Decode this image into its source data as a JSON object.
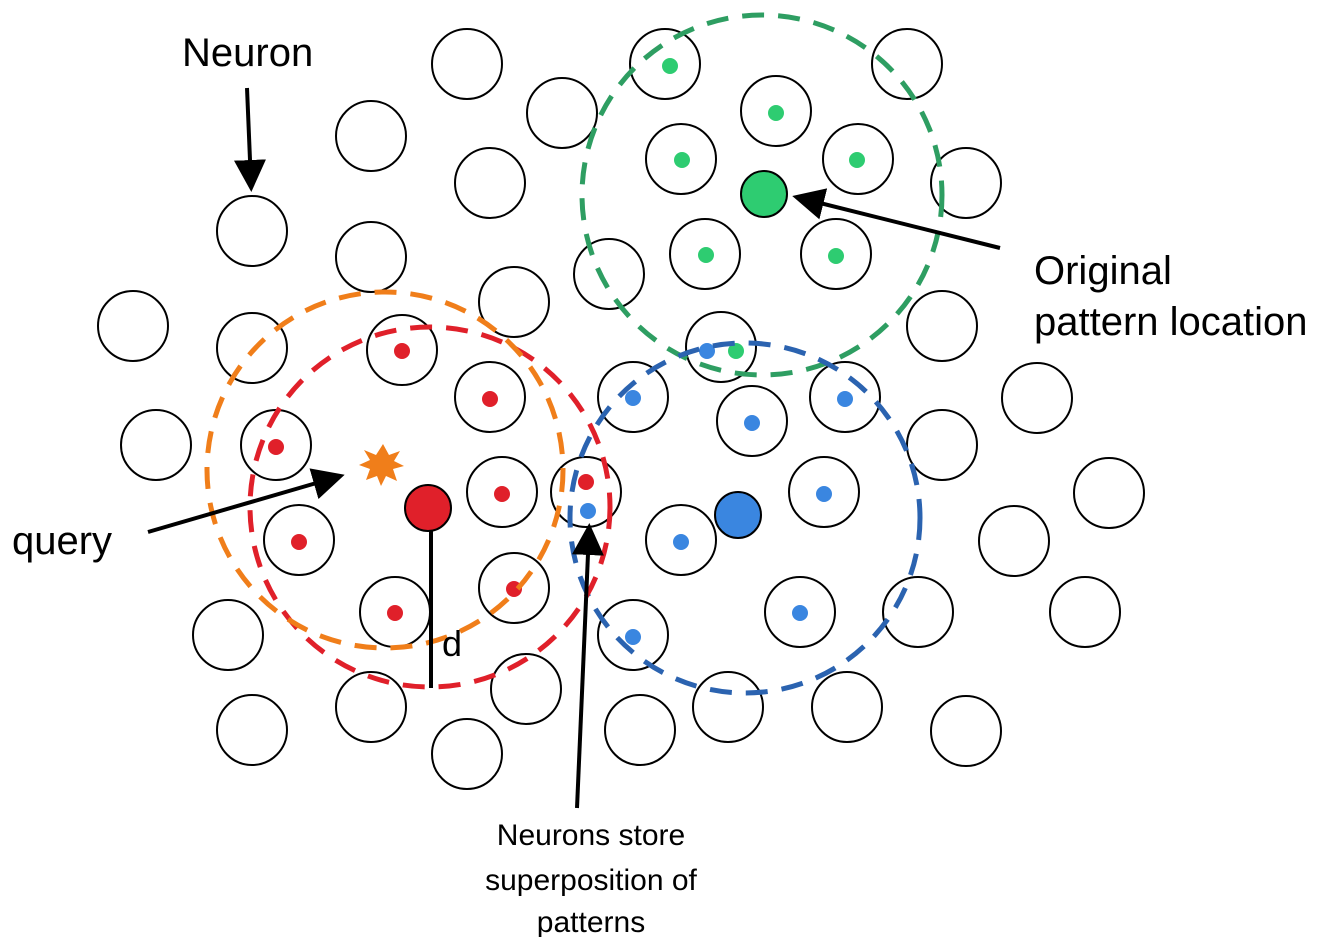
{
  "labels": {
    "neuron": "Neuron",
    "original_line1": "Original",
    "original_line2": "pattern location",
    "query": "query",
    "distance": "d",
    "caption_line1": "Neurons store",
    "caption_line2": "superposition of",
    "caption_line3": "patterns"
  },
  "colors": {
    "green": "#2ecc71",
    "green_dark": "#2e9e62",
    "red": "#e0202a",
    "blue": "#3a86e0",
    "blue_dark": "#2b63b0",
    "orange": "#f07e1a",
    "outline": "#000000"
  },
  "patterns": [
    "red",
    "blue",
    "green"
  ],
  "icons": [
    "query-star-icon",
    "arrow-icon"
  ]
}
